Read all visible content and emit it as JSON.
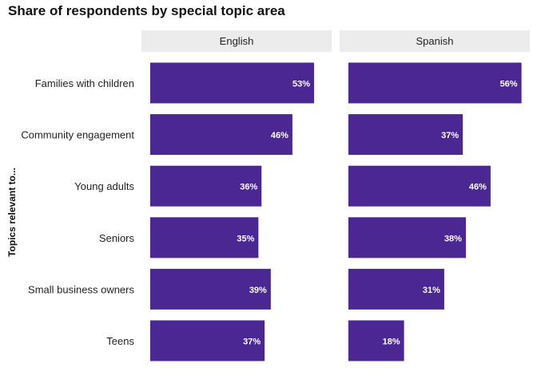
{
  "chart_data": {
    "type": "bar",
    "orientation": "horizontal",
    "title": "Share of respondents by special topic area",
    "ylabel": "Topics relevant to...",
    "xlabel": "",
    "xlim": [
      0,
      60
    ],
    "grid": false,
    "legend": "none",
    "value_suffix": "%",
    "categories": [
      "Families with children",
      "Community engagement",
      "Young adults",
      "Seniors",
      "Small business owners",
      "Teens"
    ],
    "panels": [
      {
        "label": "English",
        "values": [
          53,
          46,
          36,
          35,
          39,
          37
        ]
      },
      {
        "label": "Spanish",
        "values": [
          56,
          37,
          46,
          38,
          31,
          18
        ]
      }
    ]
  },
  "colors": {
    "bar": "#4a2793",
    "bar_label": "#ffffff",
    "strip_background": "#ececec",
    "text": "#222222"
  }
}
